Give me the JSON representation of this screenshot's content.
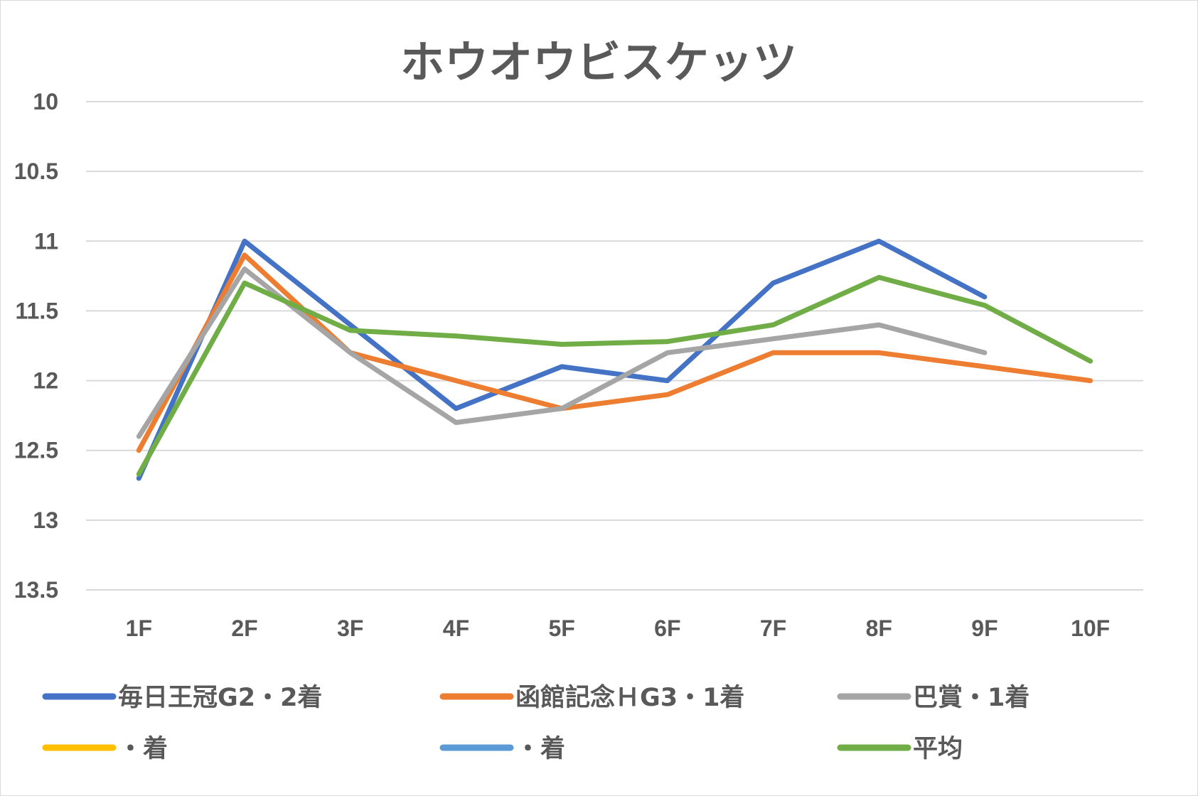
{
  "chart_data": {
    "type": "line",
    "title": "ホウオウビスケッツ",
    "xlabel": "",
    "ylabel": "",
    "categories": [
      "1F",
      "2F",
      "3F",
      "4F",
      "5F",
      "6F",
      "7F",
      "8F",
      "9F",
      "10F"
    ],
    "y_axis": {
      "min": 10,
      "max": 13.5,
      "step": 0.5,
      "reversed": true,
      "tick_labels": [
        "10",
        "10.5",
        "11",
        "11.5",
        "12",
        "12.5",
        "13",
        "13.5"
      ]
    },
    "grid": true,
    "legend_position": "bottom",
    "series": [
      {
        "name": "毎日王冠G2・2着",
        "color": "#4472c4",
        "values": [
          12.7,
          11.0,
          11.6,
          12.2,
          11.9,
          12.0,
          11.3,
          11.0,
          11.4,
          null
        ]
      },
      {
        "name": "函館記念ＨG3・1着",
        "color": "#ed7d31",
        "values": [
          12.5,
          11.1,
          11.8,
          12.0,
          12.2,
          12.1,
          11.8,
          11.8,
          11.9,
          12.0
        ]
      },
      {
        "name": "巴賞・1着",
        "color": "#a5a5a5",
        "values": [
          12.4,
          11.2,
          11.8,
          12.3,
          12.2,
          11.8,
          11.7,
          11.6,
          11.8,
          null
        ]
      },
      {
        "name": "・着",
        "color": "#ffc000",
        "values": [
          null,
          null,
          null,
          null,
          null,
          null,
          null,
          null,
          null,
          null
        ]
      },
      {
        "name": "・着",
        "color": "#5b9bd5",
        "values": [
          null,
          null,
          null,
          null,
          null,
          null,
          null,
          null,
          null,
          null
        ]
      },
      {
        "name": "平均",
        "color": "#70ad47",
        "values": [
          12.67,
          11.3,
          11.64,
          11.68,
          11.74,
          11.72,
          11.6,
          11.26,
          11.46,
          11.86
        ]
      }
    ]
  }
}
